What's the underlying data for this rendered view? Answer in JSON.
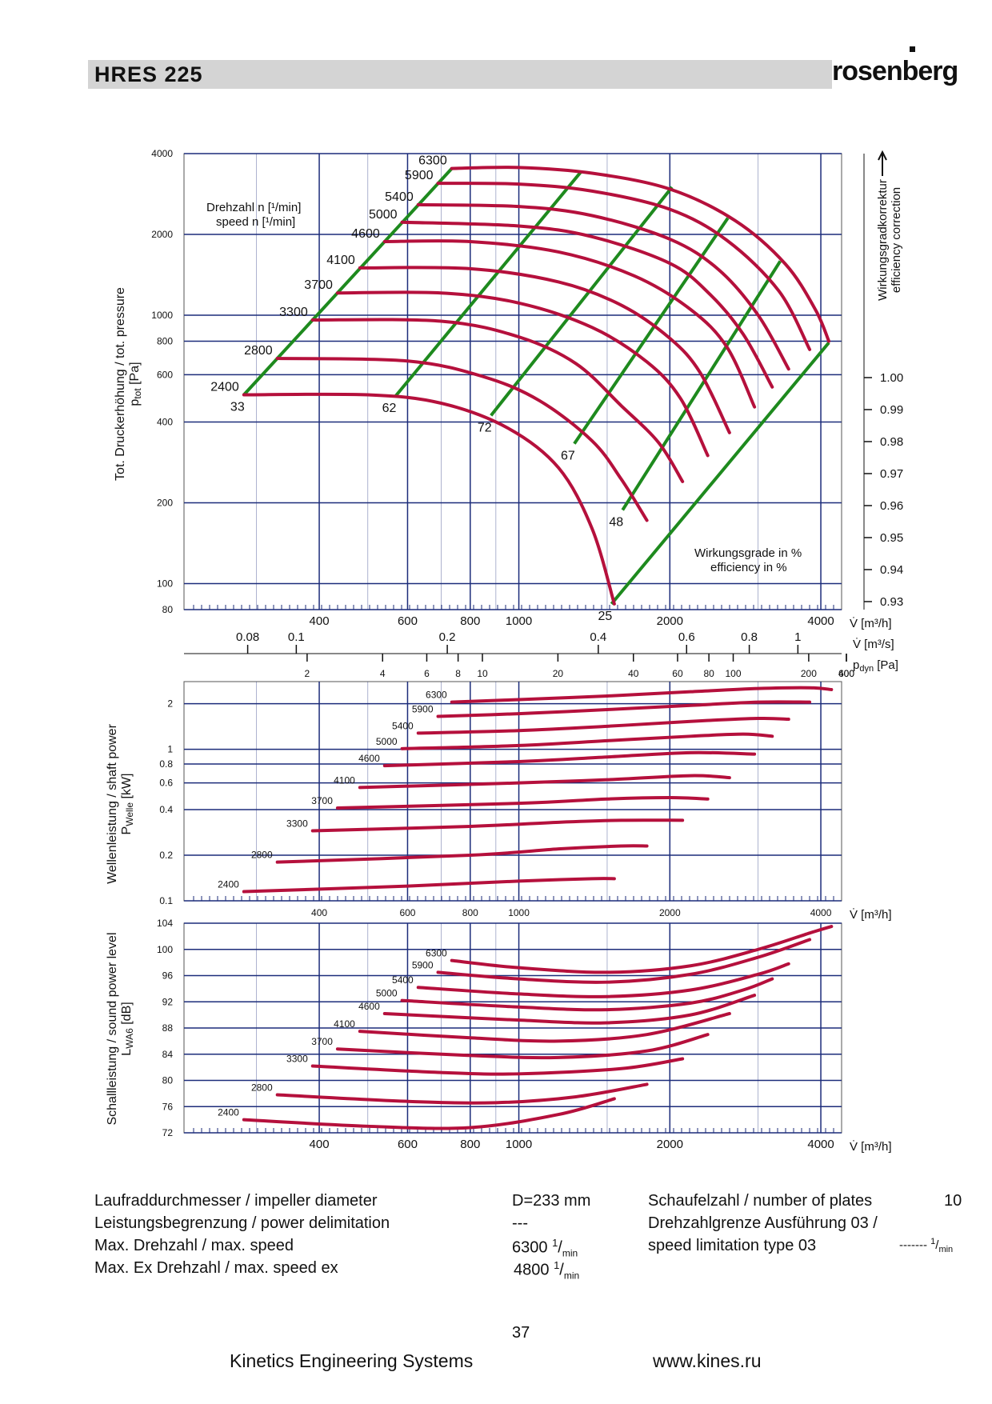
{
  "header": {
    "title": "HRES  225",
    "logo": "rosenberg"
  },
  "colors": {
    "speed_curve": "#b5103c",
    "efficiency_line": "#1e8a1e",
    "grid": "#1c2c7a",
    "header_bar": "#d4d4d4"
  },
  "chart_data": [
    {
      "type": "line",
      "ylabel": "Tot. Druckerhöhung / tot. pressure",
      "ylabel_sub": "p",
      "ylabel_sub_suffix": "tot",
      "ylabel_unit": "[Pa]",
      "xlabel": "V̇ [m³/h]",
      "x_scale": "log",
      "y_scale": "log",
      "xlim": [
        215,
        4400
      ],
      "ylim": [
        80,
        4000
      ],
      "x_ticks": [
        400,
        600,
        800,
        1000,
        2000,
        4000
      ],
      "y_ticks": [
        80,
        100,
        200,
        400,
        600,
        800,
        1000,
        2000,
        4000
      ],
      "grid": true,
      "speed_label": "Drehzahl n [¹/min]",
      "speed_label_en": "speed n [¹/min]",
      "efficiency_label": "Wirkungsgrade in %",
      "efficiency_label_en": "efficiency in %",
      "right_axis_label": "Wirkungsgradkorrektur",
      "right_axis_label_en": "efficiency correction",
      "right_axis_ticks": [
        "1.00",
        "0.99",
        "0.98",
        "0.97",
        "0.96",
        "0.95",
        "0.94",
        "0.93"
      ],
      "secondary_axes": [
        {
          "label": "V̇ [m³/s]",
          "ticks": [
            "0.08",
            "0.1",
            "0.2",
            "0.4",
            "0.6",
            "0.8",
            "1"
          ]
        },
        {
          "label": "p",
          "label_sub": "dyn",
          "label_unit": "[Pa]",
          "ticks": [
            "2",
            "4",
            "6",
            "8",
            "10",
            "20",
            "40",
            "60",
            "80",
            "100",
            "200",
            "400",
            "600"
          ]
        }
      ],
      "series": [
        {
          "name": "6300",
          "x": [
            735,
            1000,
            1400,
            2000,
            2700,
            3400,
            3900,
            4150
          ],
          "y": [
            3520,
            3550,
            3380,
            2950,
            2250,
            1550,
            1050,
            800
          ]
        },
        {
          "name": "5900",
          "x": [
            690,
            1000,
            1400,
            2000,
            2600,
            3300,
            3800
          ],
          "y": [
            3100,
            3080,
            2900,
            2480,
            1900,
            1230,
            745
          ]
        },
        {
          "name": "5400",
          "x": [
            630,
            1000,
            1400,
            2000,
            2500,
            3000,
            3450
          ],
          "y": [
            2580,
            2540,
            2350,
            1920,
            1480,
            1000,
            630
          ]
        },
        {
          "name": "5000",
          "x": [
            585,
            1000,
            1400,
            2000,
            2400,
            2800,
            3200
          ],
          "y": [
            2220,
            2150,
            1960,
            1560,
            1200,
            850,
            540
          ]
        },
        {
          "name": "4600",
          "x": [
            540,
            800,
            1200,
            1700,
            2200,
            2600,
            2950
          ],
          "y": [
            1880,
            1880,
            1720,
            1400,
            1050,
            760,
            455
          ]
        },
        {
          "name": "4100",
          "x": [
            482,
            800,
            1200,
            1600,
            2000,
            2300,
            2630
          ],
          "y": [
            1500,
            1490,
            1330,
            1090,
            820,
            610,
            365
          ]
        },
        {
          "name": "3700",
          "x": [
            435,
            700,
            1000,
            1400,
            1800,
            2100,
            2380
          ],
          "y": [
            1210,
            1210,
            1110,
            900,
            670,
            490,
            300
          ]
        },
        {
          "name": "3300",
          "x": [
            388,
            700,
            1000,
            1300,
            1600,
            1900,
            2120
          ],
          "y": [
            960,
            950,
            830,
            660,
            460,
            335,
            240
          ]
        },
        {
          "name": "2800",
          "x": [
            330,
            600,
            850,
            1100,
            1400,
            1600,
            1800
          ],
          "y": [
            690,
            675,
            590,
            480,
            340,
            245,
            172
          ]
        },
        {
          "name": "2400",
          "x": [
            283,
            500,
            700,
            950,
            1200,
            1400,
            1550
          ],
          "y": [
            505,
            505,
            470,
            380,
            270,
            160,
            84
          ]
        }
      ],
      "efficiency_lines": [
        {
          "name": "33",
          "x": [
            283,
            735
          ],
          "y": [
            505,
            3520
          ]
        },
        {
          "name": "62",
          "x": [
            568,
            1330
          ],
          "y": [
            500,
            3420
          ]
        },
        {
          "name": "72",
          "x": [
            880,
            2020
          ],
          "y": [
            423,
            3000
          ]
        },
        {
          "name": "67",
          "x": [
            1290,
            2610
          ],
          "y": [
            332,
            2300
          ]
        },
        {
          "name": "48",
          "x": [
            1610,
            3320
          ],
          "y": [
            188,
            1590
          ]
        },
        {
          "name": "25",
          "x": [
            1530,
            4150
          ],
          "y": [
            84,
            790
          ]
        }
      ]
    },
    {
      "type": "line",
      "ylabel": "Wellenleistung / shaft power",
      "ylabel_sub": "P",
      "ylabel_sub_suffix": "Welle",
      "ylabel_unit": "[kW]",
      "xlabel": "V̇ [m³/h]",
      "x_scale": "log",
      "y_scale": "log",
      "xlim": [
        215,
        4400
      ],
      "ylim": [
        0.1,
        2.8
      ],
      "x_ticks": [
        400,
        600,
        800,
        1000,
        2000,
        4000
      ],
      "y_ticks": [
        0.1,
        0.2,
        0.4,
        0.6,
        0.8,
        1,
        2
      ],
      "grid": true,
      "series": [
        {
          "name": "6300",
          "x": [
            735,
            1000,
            1500,
            2200,
            3000,
            3800,
            4200
          ],
          "y": [
            2.05,
            2.13,
            2.25,
            2.4,
            2.52,
            2.55,
            2.48
          ]
        },
        {
          "name": "5900",
          "x": [
            690,
            1000,
            1500,
            2200,
            3000,
            3800
          ],
          "y": [
            1.65,
            1.72,
            1.83,
            1.95,
            2.05,
            2.05
          ]
        },
        {
          "name": "5400",
          "x": [
            630,
            1000,
            1500,
            2200,
            3000,
            3450
          ],
          "y": [
            1.28,
            1.33,
            1.42,
            1.53,
            1.6,
            1.58
          ]
        },
        {
          "name": "5000",
          "x": [
            585,
            1000,
            1500,
            2200,
            2800,
            3200
          ],
          "y": [
            1.01,
            1.06,
            1.14,
            1.22,
            1.26,
            1.22
          ]
        },
        {
          "name": "4600",
          "x": [
            540,
            1000,
            1500,
            2200,
            2950
          ],
          "y": [
            0.78,
            0.83,
            0.89,
            0.95,
            0.93
          ]
        },
        {
          "name": "4100",
          "x": [
            482,
            1000,
            1500,
            2200,
            2630
          ],
          "y": [
            0.56,
            0.6,
            0.63,
            0.67,
            0.65
          ]
        },
        {
          "name": "3700",
          "x": [
            435,
            1000,
            1500,
            2000,
            2380
          ],
          "y": [
            0.41,
            0.44,
            0.47,
            0.48,
            0.47
          ]
        },
        {
          "name": "3300",
          "x": [
            388,
            800,
            1200,
            1600,
            2120
          ],
          "y": [
            0.29,
            0.31,
            0.33,
            0.34,
            0.34
          ]
        },
        {
          "name": "2800",
          "x": [
            330,
            800,
            1200,
            1600,
            1800
          ],
          "y": [
            0.18,
            0.2,
            0.22,
            0.23,
            0.23
          ]
        },
        {
          "name": "2400",
          "x": [
            283,
            600,
            1000,
            1400,
            1550
          ],
          "y": [
            0.115,
            0.125,
            0.135,
            0.14,
            0.14
          ]
        }
      ]
    },
    {
      "type": "line",
      "ylabel": "Schallleistung / sound power",
      "ylabel_2": "level",
      "ylabel_sub": "L",
      "ylabel_sub_suffix": "WA6",
      "ylabel_unit": "[dB]",
      "xlabel": "V̇ [m³/h]",
      "x_scale": "log",
      "y_scale": "linear",
      "xlim": [
        215,
        4400
      ],
      "ylim": [
        72,
        104
      ],
      "x_ticks": [
        400,
        600,
        800,
        1000,
        2000,
        4000
      ],
      "y_ticks": [
        72,
        76,
        80,
        84,
        88,
        92,
        96,
        100,
        104
      ],
      "grid": true,
      "series": [
        {
          "name": "6300",
          "x": [
            735,
            1000,
            1500,
            2200,
            3000,
            3800,
            4200
          ],
          "y": [
            98.3,
            97.2,
            96.5,
            97.5,
            100,
            102.5,
            103.5
          ]
        },
        {
          "name": "5900",
          "x": [
            690,
            1000,
            1500,
            2200,
            3000,
            3800
          ],
          "y": [
            96.5,
            95.5,
            95,
            96.2,
            98.8,
            101.5
          ]
        },
        {
          "name": "5400",
          "x": [
            630,
            1000,
            1500,
            2200,
            3000,
            3450
          ],
          "y": [
            94.2,
            93.2,
            92.8,
            93.8,
            96.2,
            97.8
          ]
        },
        {
          "name": "5000",
          "x": [
            585,
            1000,
            1500,
            2200,
            2800,
            3200
          ],
          "y": [
            92.2,
            91.2,
            90.8,
            91.8,
            93.8,
            95.5
          ]
        },
        {
          "name": "4600",
          "x": [
            540,
            1000,
            1500,
            2200,
            2950
          ],
          "y": [
            90.2,
            89.2,
            88.8,
            90,
            93
          ]
        },
        {
          "name": "4100",
          "x": [
            482,
            800,
            1200,
            1800,
            2630
          ],
          "y": [
            87.5,
            86.5,
            86,
            87,
            90.2
          ]
        },
        {
          "name": "3700",
          "x": [
            435,
            800,
            1200,
            1800,
            2380
          ],
          "y": [
            84.8,
            83.8,
            83.5,
            84.5,
            87
          ]
        },
        {
          "name": "3300",
          "x": [
            388,
            700,
            1000,
            1600,
            2120
          ],
          "y": [
            82.2,
            81.2,
            81,
            81.8,
            83.3
          ]
        },
        {
          "name": "2800",
          "x": [
            330,
            600,
            900,
            1300,
            1800
          ],
          "y": [
            77.8,
            76.8,
            76.6,
            77.5,
            79.4
          ]
        },
        {
          "name": "2400",
          "x": [
            283,
            500,
            800,
            1200,
            1550
          ],
          "y": [
            74,
            73,
            72.8,
            74.8,
            77.2
          ]
        }
      ]
    }
  ],
  "specs": [
    {
      "label": "Laufraddurchmesser / impeller diameter",
      "value": "D=233 mm"
    },
    {
      "label": "Leistungsbegrenzung / power delimitation",
      "value": "---"
    },
    {
      "label": "Max. Drehzahl / max. speed",
      "value": "6300",
      "unit_sup": "1",
      "unit_sub": "min"
    },
    {
      "label": "Max. Ex Drehzahl / max. speed ex",
      "value": "4800",
      "unit_sup": "1",
      "unit_sub": "min"
    }
  ],
  "specs_right": [
    {
      "label": "Schaufelzahl / number of plates",
      "value": "10"
    },
    {
      "label": "Drehzahlgrenze Ausführung 03 /",
      "value": ""
    },
    {
      "label": "speed limitation type 03",
      "value": "-------",
      "unit_sup": "1",
      "unit_sub": "min"
    }
  ],
  "footer": {
    "page_number": "37",
    "company": "Kinetics Engineering Systems",
    "url": "www.kines.ru"
  }
}
